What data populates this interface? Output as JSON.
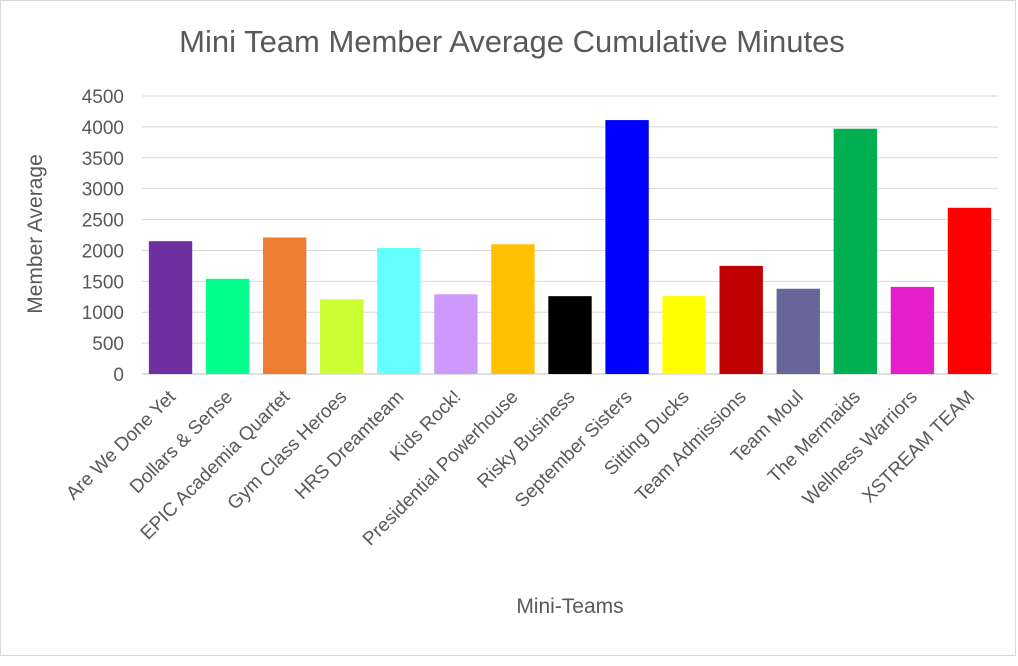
{
  "chart_data": {
    "type": "bar",
    "title": "Mini Team Member Average Cumulative Minutes",
    "xlabel": "Mini-Teams",
    "ylabel": "Member Average",
    "ylim": [
      0,
      4500
    ],
    "yticks": [
      0,
      500,
      1000,
      1500,
      2000,
      2500,
      3000,
      3500,
      4000,
      4500
    ],
    "grid": true,
    "categories": [
      "Are We Done Yet",
      "Dollars & Sense",
      "EPIC Academia Quartet",
      "Gym Class Heroes",
      "HRS Dreamteam",
      "Kids Rock!",
      "Presidential Powerhouse",
      "Risky Business",
      "September Sisters",
      "Sitting Ducks",
      "Team Admissions",
      "Team Moul",
      "The Mermaids",
      "Wellness Warriors",
      "XSTREAM TEAM"
    ],
    "values": [
      2150,
      1540,
      2210,
      1210,
      2040,
      1290,
      2100,
      1260,
      4110,
      1260,
      1750,
      1380,
      3970,
      1410,
      2690
    ],
    "colors": [
      "#7030a0",
      "#00ff8c",
      "#ed7d31",
      "#ccff33",
      "#66ffff",
      "#cc99ff",
      "#ffc000",
      "#000000",
      "#0000ff",
      "#ffff00",
      "#c00000",
      "#666699",
      "#00b050",
      "#e61ecc",
      "#ff0000"
    ]
  }
}
